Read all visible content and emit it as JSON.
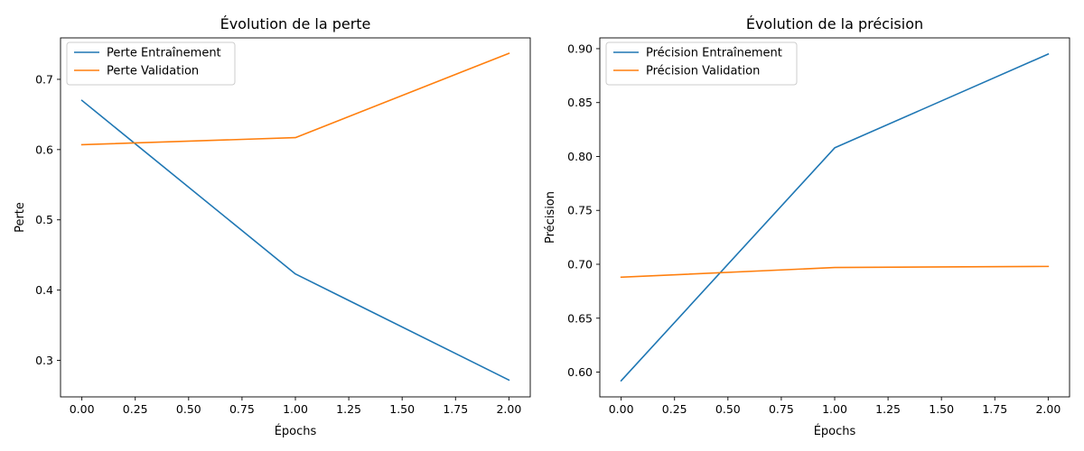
{
  "colors": {
    "series_1": "#1f77b4",
    "series_2": "#ff7f0e"
  },
  "chart_data": [
    {
      "type": "line",
      "title": "Évolution de la perte",
      "xlabel": "Épochs",
      "ylabel": "Perte",
      "x": [
        0,
        1,
        2
      ],
      "xlim": [
        -0.1,
        2.1
      ],
      "ylim": [
        0.248,
        0.759
      ],
      "xticks": [
        "0.00",
        "0.25",
        "0.50",
        "0.75",
        "1.00",
        "1.25",
        "1.50",
        "1.75",
        "2.00"
      ],
      "yticks": [
        "0.3",
        "0.4",
        "0.5",
        "0.6",
        "0.7"
      ],
      "grid": false,
      "legend": "upper-left",
      "series": [
        {
          "name": "Perte Entraînement",
          "values": [
            0.67,
            0.423,
            0.272
          ],
          "color": "#1f77b4"
        },
        {
          "name": "Perte Validation",
          "values": [
            0.607,
            0.617,
            0.737
          ],
          "color": "#ff7f0e"
        }
      ]
    },
    {
      "type": "line",
      "title": "Évolution de la précision",
      "xlabel": "Épochs",
      "ylabel": "Précision",
      "x": [
        0,
        1,
        2
      ],
      "xlim": [
        -0.1,
        2.1
      ],
      "ylim": [
        0.577,
        0.91
      ],
      "xticks": [
        "0.00",
        "0.25",
        "0.50",
        "0.75",
        "1.00",
        "1.25",
        "1.50",
        "1.75",
        "2.00"
      ],
      "yticks": [
        "0.60",
        "0.65",
        "0.70",
        "0.75",
        "0.80",
        "0.85",
        "0.90"
      ],
      "grid": false,
      "legend": "upper-left",
      "series": [
        {
          "name": "Précision Entraînement",
          "values": [
            0.592,
            0.808,
            0.895
          ],
          "color": "#1f77b4"
        },
        {
          "name": "Précision Validation",
          "values": [
            0.688,
            0.697,
            0.698
          ],
          "color": "#ff7f0e"
        }
      ]
    }
  ]
}
